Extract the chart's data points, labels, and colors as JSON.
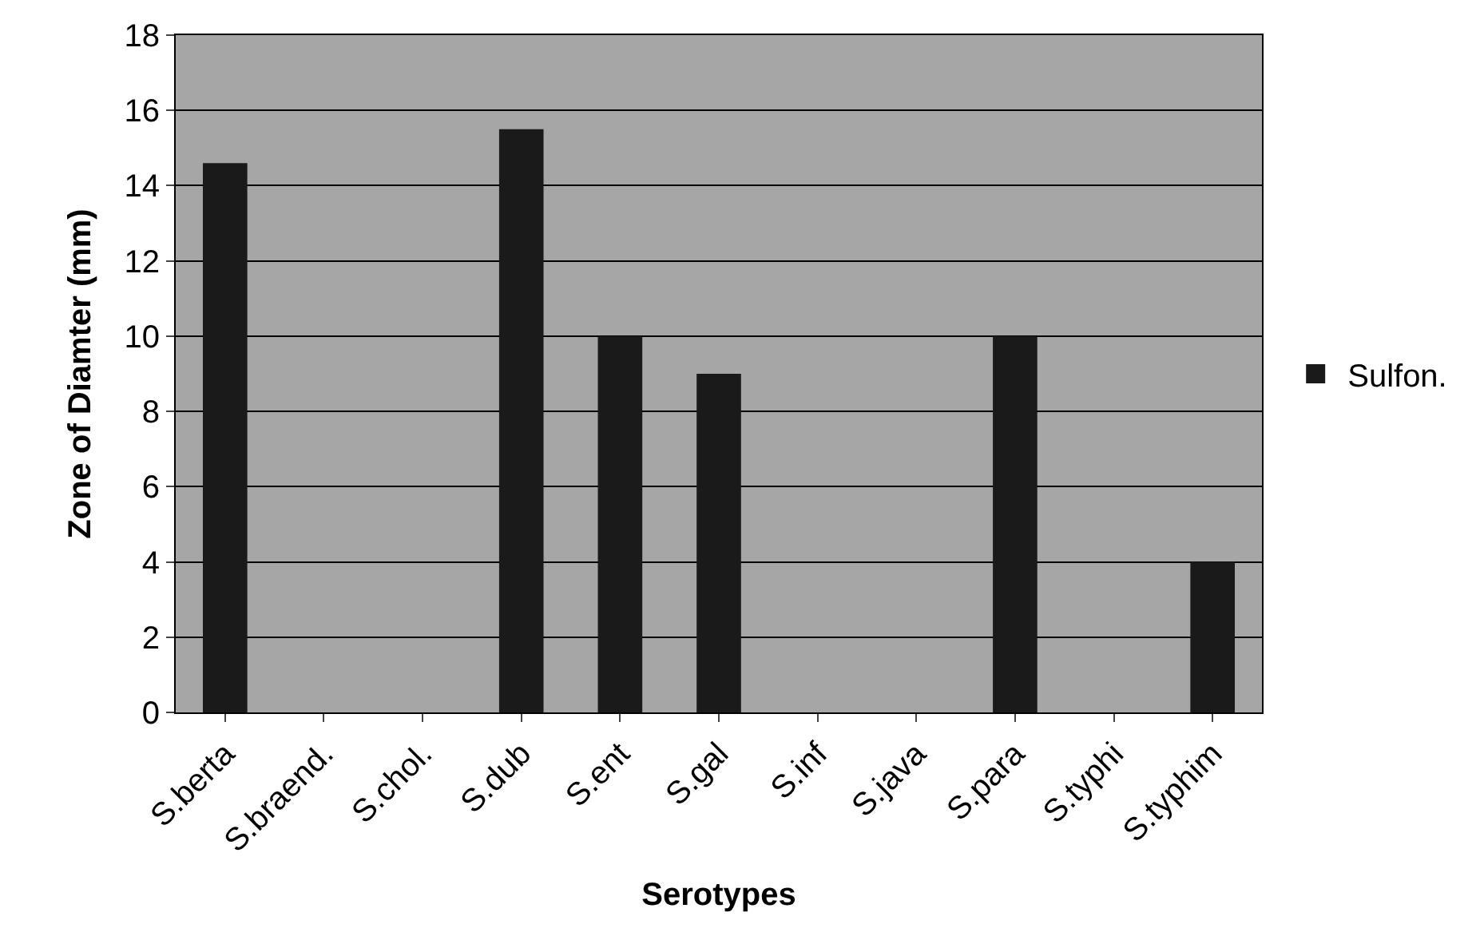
{
  "chart_data": {
    "type": "bar",
    "xlabel": "Serotypes",
    "ylabel": "Zone of Diamter (mm)",
    "categories": [
      "S.berta",
      "S.braend.",
      "S.chol.",
      "S.dub",
      "S.ent",
      "S.gal",
      "S.inf",
      "S.java",
      "S.para",
      "S.typhi",
      "S.typhim"
    ],
    "series": [
      {
        "name": "Sulfon.",
        "color": "#1a1a1a",
        "values": [
          14.6,
          0,
          0,
          15.5,
          10,
          9,
          0,
          0,
          10,
          0,
          4
        ]
      }
    ],
    "ylim": [
      0,
      18
    ],
    "yticks": [
      0,
      2,
      4,
      6,
      8,
      10,
      12,
      14,
      16,
      18
    ],
    "grid": "y",
    "legend": "right"
  }
}
